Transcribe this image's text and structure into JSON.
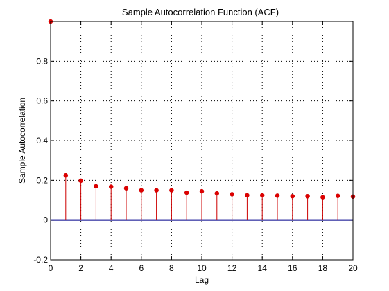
{
  "chart_data": {
    "type": "stem",
    "title": "Sample Autocorrelation Function (ACF)",
    "xlabel": "Lag",
    "ylabel": "Sample Autocorrelation",
    "xlim": [
      0,
      20
    ],
    "ylim": [
      -0.2,
      1.0
    ],
    "grid": true,
    "x_ticks": [
      0,
      2,
      4,
      6,
      8,
      10,
      12,
      14,
      16,
      18,
      20
    ],
    "y_ticks": [
      -0.2,
      0,
      0.2,
      0.4,
      0.6,
      0.8
    ],
    "x_tick_labels": [
      "0",
      "2",
      "4",
      "6",
      "8",
      "10",
      "12",
      "14",
      "16",
      "18",
      "20"
    ],
    "y_tick_labels": [
      "-0.2",
      "0",
      "0.2",
      "0.4",
      "0.6",
      "0.8"
    ],
    "stem_color": "#cc0000",
    "marker_color": "#dd0000",
    "baseline_color": "#00008b",
    "x": [
      0,
      1,
      2,
      3,
      4,
      5,
      6,
      7,
      8,
      9,
      10,
      11,
      12,
      13,
      14,
      15,
      16,
      17,
      18,
      19,
      20
    ],
    "values": [
      1.0,
      0.225,
      0.198,
      0.17,
      0.168,
      0.16,
      0.15,
      0.15,
      0.15,
      0.138,
      0.145,
      0.135,
      0.13,
      0.125,
      0.125,
      0.123,
      0.12,
      0.12,
      0.115,
      0.122,
      0.118
    ]
  }
}
